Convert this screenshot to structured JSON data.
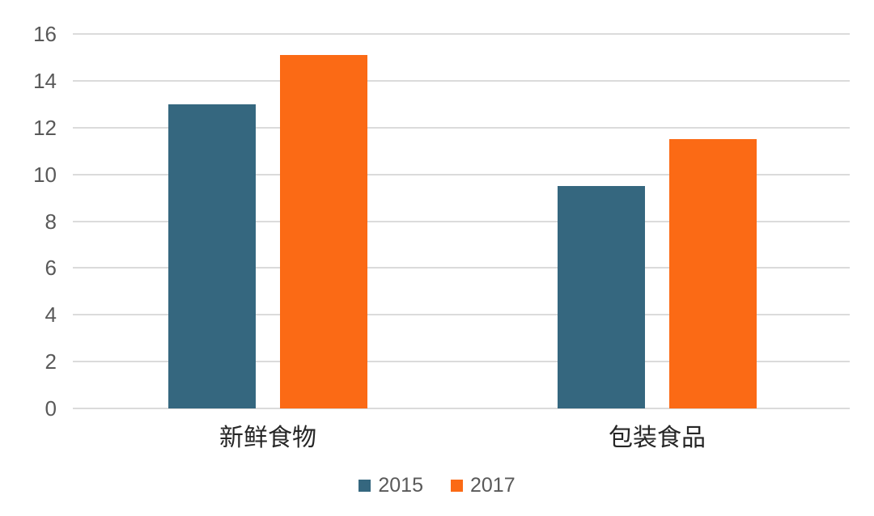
{
  "chart_data": {
    "type": "bar",
    "title": "",
    "xlabel": "",
    "ylabel": "",
    "categories": [
      "新鲜食物",
      "包装食品"
    ],
    "series": [
      {
        "name": "2015",
        "color": "#35677F",
        "values": [
          13.0,
          9.5
        ]
      },
      {
        "name": "2017",
        "color": "#FB6A15",
        "values": [
          15.1,
          11.5
        ]
      }
    ],
    "yticks": [
      0,
      2,
      4,
      6,
      8,
      10,
      12,
      14,
      16
    ],
    "ylim": [
      0,
      16
    ],
    "grid": true,
    "legend_position": "bottom-center"
  },
  "colors": {
    "background": "#FFFFFF",
    "gridline": "#DBDBDB",
    "tick_text": "#595959",
    "category_text": "#262626",
    "legend_text": "#595959"
  }
}
